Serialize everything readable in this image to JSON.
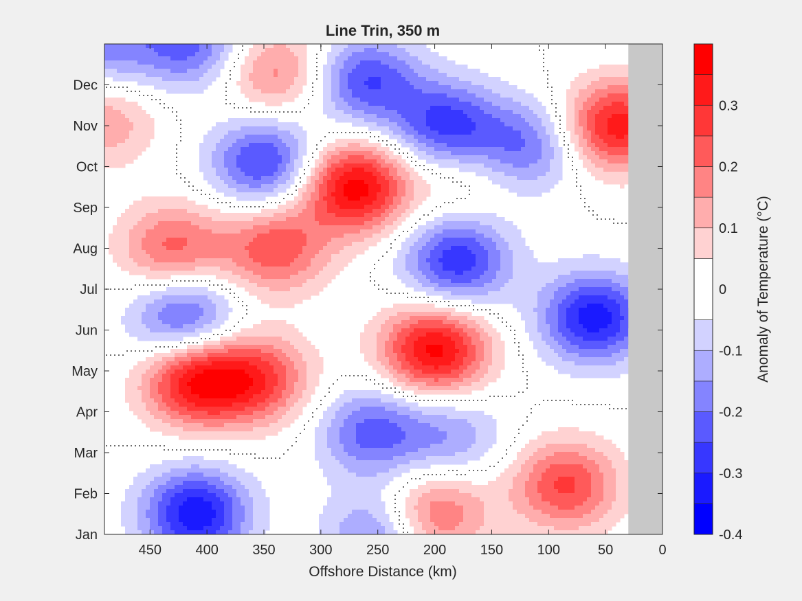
{
  "chart_data": {
    "type": "heatmap",
    "title": "Line Trin, 350 m",
    "xlabel": "Offshore Distance (km)",
    "ylabel": "",
    "colorbar_label": "Anomaly of Temperature (°C)",
    "x_reversed": true,
    "xlim": [
      0,
      490
    ],
    "xticks": [
      450,
      400,
      350,
      300,
      250,
      200,
      150,
      100,
      50,
      0
    ],
    "y_months": [
      "Jan",
      "Feb",
      "Mar",
      "Apr",
      "May",
      "Jun",
      "Jul",
      "Aug",
      "Sep",
      "Oct",
      "Nov",
      "Dec"
    ],
    "no_data_x_range": [
      0,
      30
    ],
    "colorbar_limits": [
      -0.4,
      0.4
    ],
    "colorbar_ticks": [
      -0.4,
      -0.3,
      -0.2,
      -0.1,
      0,
      0.1,
      0.2,
      0.3
    ],
    "contour_levels": [
      -0.4,
      -0.35,
      -0.3,
      -0.25,
      -0.2,
      -0.15,
      -0.1,
      -0.05,
      0.05,
      0.1,
      0.15,
      0.2,
      0.25,
      0.3,
      0.35,
      0.4
    ],
    "colors": {
      "-0.375": "#0000ff",
      "-0.325": "#1a1aff",
      "-0.275": "#3737ff",
      "-0.225": "#5a5aff",
      "-0.175": "#8484ff",
      "-0.125": "#adadff",
      "-0.075": "#d2d2ff",
      "0": "#ffffff",
      "0.075": "#ffd2d2",
      "0.125": "#ffadad",
      "0.175": "#ff8484",
      "0.225": "#ff5a5a",
      "0.275": "#ff3737",
      "0.325": "#ff1a1a",
      "0.375": "#ff0000",
      "no_data": "#c8c8c8",
      "zero_contour": "#000000"
    },
    "anomaly_features": [
      {
        "x_km": 410,
        "month": 3.75,
        "value": 0.34
      },
      {
        "x_km": 355,
        "month": 3.8,
        "value": 0.25
      },
      {
        "x_km": 200,
        "month": 4.5,
        "value": 0.37
      },
      {
        "x_km": 85,
        "month": 1.2,
        "value": 0.26
      },
      {
        "x_km": 270,
        "month": 8.5,
        "value": 0.38
      },
      {
        "x_km": 340,
        "month": 7.0,
        "value": 0.24
      },
      {
        "x_km": 430,
        "month": 7.0,
        "value": 0.22
      },
      {
        "x_km": 200,
        "month": 0.5,
        "value": 0.22
      },
      {
        "x_km": 40,
        "month": 10.0,
        "value": 0.33
      },
      {
        "x_km": 340,
        "month": 11.3,
        "value": 0.18
      },
      {
        "x_km": 175,
        "month": 8.7,
        "value": 0.08
      },
      {
        "x_km": 410,
        "month": 0.5,
        "value": -0.34
      },
      {
        "x_km": 420,
        "month": 5.3,
        "value": -0.25
      },
      {
        "x_km": 60,
        "month": 5.3,
        "value": -0.33
      },
      {
        "x_km": 180,
        "month": 6.7,
        "value": -0.29
      },
      {
        "x_km": 350,
        "month": 9.1,
        "value": -0.27
      },
      {
        "x_km": 260,
        "month": 11.1,
        "value": -0.25
      },
      {
        "x_km": 415,
        "month": 12.0,
        "value": -0.22
      },
      {
        "x_km": 190,
        "month": 10.0,
        "value": -0.27
      },
      {
        "x_km": 120,
        "month": 9.5,
        "value": -0.2
      },
      {
        "x_km": 255,
        "month": 2.5,
        "value": -0.22
      },
      {
        "x_km": 185,
        "month": 2.4,
        "value": -0.14
      },
      {
        "x_km": 490,
        "month": 12.0,
        "value": -0.17
      },
      {
        "x_km": 490,
        "month": 10.1,
        "value": 0.14
      },
      {
        "x_km": 250,
        "month": 0.0,
        "value": -0.18
      }
    ]
  }
}
